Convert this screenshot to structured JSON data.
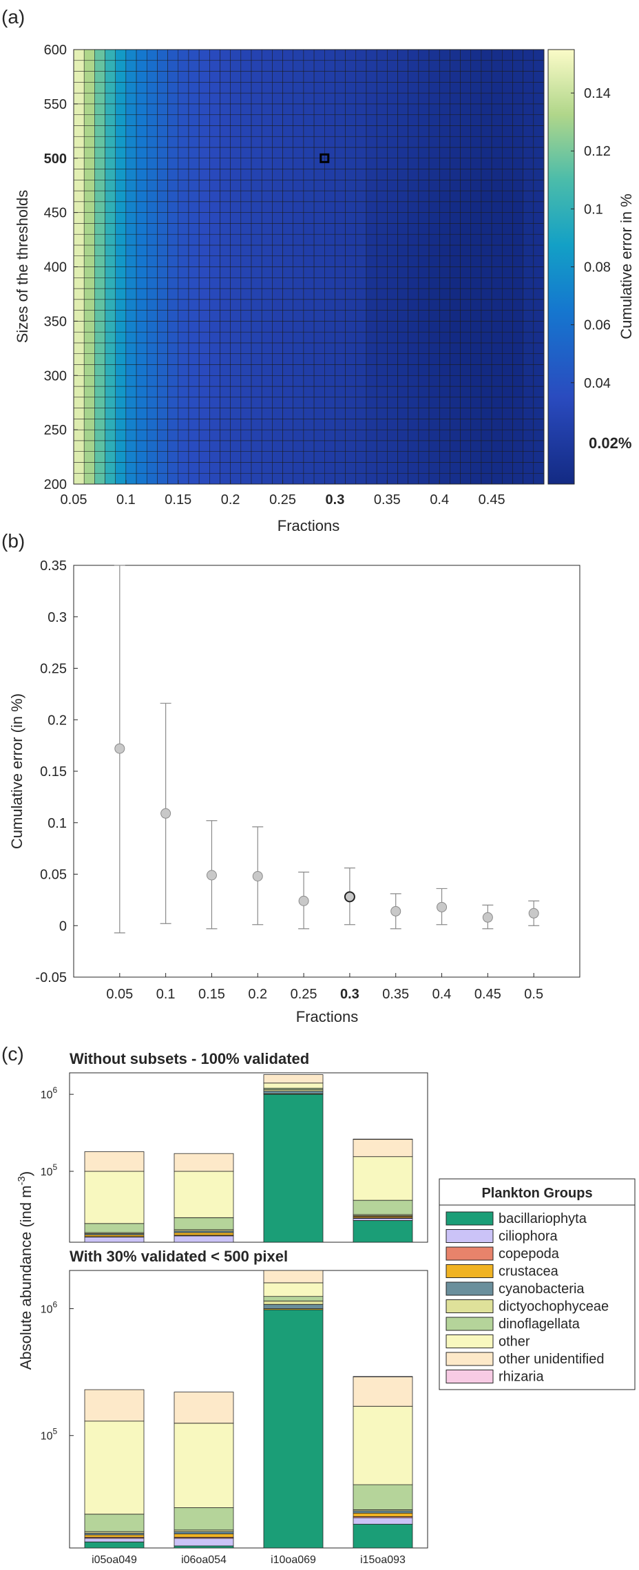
{
  "panels": {
    "a": "(a)",
    "b": "(b)",
    "c": "(c)"
  },
  "chart_data": [
    {
      "panel": "(a)",
      "type": "heatmap",
      "xlabel": "Fractions",
      "ylabel": "Sizes of the thresholds",
      "colorbar_label": "Cumulative error in %",
      "x_ticks": [
        "0.05",
        "0.1",
        "0.15",
        "0.2",
        "0.25",
        "0.3",
        "0.35",
        "0.4",
        "0.45"
      ],
      "x_bold_tick": "0.3",
      "y_ticks": [
        "200",
        "250",
        "300",
        "350",
        "400",
        "450",
        "500",
        "550",
        "600"
      ],
      "y_bold_tick": "500",
      "xlim": [
        0.05,
        0.5
      ],
      "ylim": [
        200,
        600
      ],
      "grid_cols": 45,
      "grid_rows": 40,
      "colorbar_ticks": [
        "0.04",
        "0.06",
        "0.08",
        "0.1",
        "0.12",
        "0.14"
      ],
      "colorbar_range": [
        0.005,
        0.155
      ],
      "colorbar_highlight": "0.02%",
      "selected_cell": {
        "x": 0.29,
        "y": 500
      },
      "colormap": "parula",
      "approx_profile": {
        "fractions": [
          0.05,
          0.1,
          0.15,
          0.2,
          0.25,
          0.3,
          0.35,
          0.4,
          0.45,
          0.5
        ],
        "error": [
          0.155,
          0.075,
          0.04,
          0.03,
          0.025,
          0.022,
          0.018,
          0.012,
          0.008,
          0.01
        ]
      }
    },
    {
      "panel": "(b)",
      "type": "scatter",
      "xlabel": "Fractions",
      "ylabel": "Cumulative error (in %)",
      "x_ticks": [
        "0.05",
        "0.1",
        "0.15",
        "0.2",
        "0.25",
        "0.3",
        "0.35",
        "0.4",
        "0.45",
        "0.5"
      ],
      "x_bold_tick": "0.3",
      "y_ticks": [
        "-0.05",
        "0",
        "0.05",
        "0.1",
        "0.15",
        "0.2",
        "0.25",
        "0.3",
        "0.35"
      ],
      "xlim": [
        0,
        0.55
      ],
      "ylim": [
        -0.05,
        0.35
      ],
      "points": [
        {
          "x": 0.05,
          "y": 0.172,
          "low": -0.007,
          "high": 0.35
        },
        {
          "x": 0.1,
          "y": 0.109,
          "low": 0.002,
          "high": 0.216
        },
        {
          "x": 0.15,
          "y": 0.049,
          "low": -0.003,
          "high": 0.102
        },
        {
          "x": 0.2,
          "y": 0.048,
          "low": 0.001,
          "high": 0.096
        },
        {
          "x": 0.25,
          "y": 0.024,
          "low": -0.003,
          "high": 0.052
        },
        {
          "x": 0.3,
          "y": 0.028,
          "low": 0.001,
          "high": 0.056,
          "highlight": true
        },
        {
          "x": 0.35,
          "y": 0.014,
          "low": -0.003,
          "high": 0.031
        },
        {
          "x": 0.4,
          "y": 0.018,
          "low": 0.001,
          "high": 0.036
        },
        {
          "x": 0.45,
          "y": 0.008,
          "low": -0.003,
          "high": 0.02
        },
        {
          "x": 0.5,
          "y": 0.012,
          "low": 0.0,
          "high": 0.024
        }
      ]
    },
    {
      "panel": "(c)",
      "type": "bar",
      "stacked": true,
      "yscale": "log",
      "ylabel": "Absolute abundance (ind m",
      "ylabel_sup": "-3",
      "ylabel_close": ")",
      "categories": [
        "i05oa049",
        "i06oa054",
        "i10oa069",
        "i15oa093"
      ],
      "legend_title": "Plankton Groups",
      "legend_position": "right",
      "groups": [
        {
          "name": "bacillariophyta",
          "color": "#1b9e77"
        },
        {
          "name": "ciliophora",
          "color": "#cbc3f7"
        },
        {
          "name": "copepoda",
          "color": "#e8836b"
        },
        {
          "name": "crustacea",
          "color": "#f0b323"
        },
        {
          "name": "cyanobacteria",
          "color": "#6a8f9c"
        },
        {
          "name": "dictyochophyceae",
          "color": "#dfe19a"
        },
        {
          "name": "dinoflagellata",
          "color": "#b5d49a"
        },
        {
          "name": "other",
          "color": "#f8f8bf"
        },
        {
          "name": "other unidentified",
          "color": "#fde9c9"
        },
        {
          "name": "rhizaria",
          "color": "#f7cbe4"
        }
      ],
      "subplots": [
        {
          "title": "Without subsets - 100% validated",
          "ylim": [
            12000,
            1900000
          ],
          "y_ticks": [
            {
              "label": "10",
              "sup": "5",
              "value": 100000
            },
            {
              "label": "10",
              "sup": "6",
              "value": 1000000
            }
          ],
          "cumulative_tops": {
            "i05oa049": [
              12000,
              14000,
              14200,
              15000,
              15500,
              16000,
              21000,
              100000,
              180000,
              180000
            ],
            "i06oa054": [
              12000,
              14500,
              14800,
              16000,
              16800,
              17500,
              25000,
              100000,
              170000,
              170000
            ],
            "i10oa069": [
              1000000,
              1000000,
              1000000,
              1020000,
              1100000,
              1150000,
              1200000,
              1400000,
              1800000,
              1800000
            ],
            "i15oa093": [
              23000,
              24500,
              25000,
              26000,
              26500,
              27500,
              42000,
              155000,
              260000,
              262000
            ]
          }
        },
        {
          "title": "With 30% validated < 500 pixel",
          "ylim": [
            13000,
            2000000
          ],
          "y_ticks": [
            {
              "label": "10",
              "sup": "5",
              "value": 100000
            },
            {
              "label": "10",
              "sup": "6",
              "value": 1000000
            }
          ],
          "cumulative_tops": {
            "i05oa049": [
              14500,
              15500,
              15800,
              16500,
              17000,
              17500,
              24000,
              130000,
              230000,
              230000
            ],
            "i06oa054": [
              13500,
              15500,
              15800,
              16800,
              17500,
              18000,
              27000,
              125000,
              220000,
              220000
            ],
            "i10oa069": [
              980000,
              980000,
              980000,
              1000000,
              1080000,
              1150000,
              1250000,
              1600000,
              2000000,
              2000000
            ],
            "i15oa093": [
              20000,
              22500,
              23000,
              24500,
              25500,
              26000,
              41000,
              170000,
              290000,
              292000
            ]
          }
        }
      ]
    }
  ]
}
